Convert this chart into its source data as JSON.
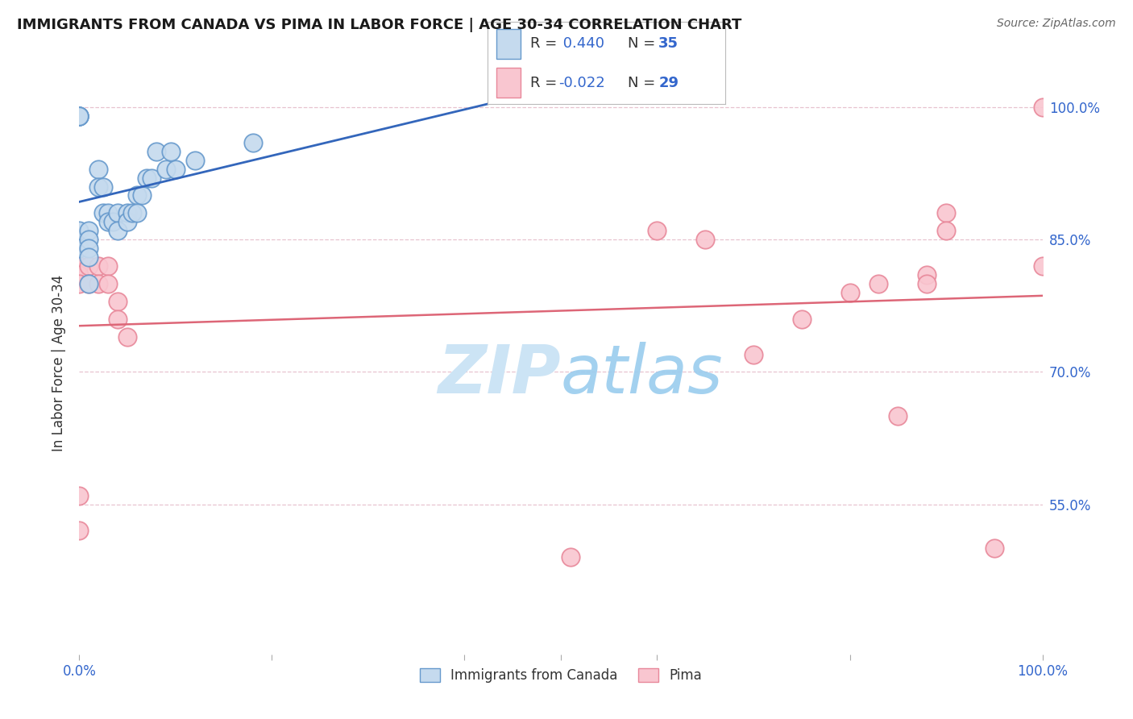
{
  "title": "IMMIGRANTS FROM CANADA VS PIMA IN LABOR FORCE | AGE 30-34 CORRELATION CHART",
  "source": "Source: ZipAtlas.com",
  "ylabel": "In Labor Force | Age 30-34",
  "ytick_values": [
    1.0,
    0.85,
    0.7,
    0.55
  ],
  "xlim": [
    0.0,
    1.0
  ],
  "ylim": [
    0.38,
    1.04
  ],
  "r_canada": 0.44,
  "n_canada": 35,
  "r_pima": -0.022,
  "n_pima": 29,
  "canada_fill": "#c5daee",
  "pima_fill": "#f9c6d0",
  "canada_edge": "#6699cc",
  "pima_edge": "#e8889a",
  "canada_line": "#3366bb",
  "pima_line": "#dd6677",
  "blue_text": "#3366cc",
  "watermark_color": "#cce4f5",
  "canada_x": [
    0.0,
    0.0,
    0.0,
    0.0,
    0.0,
    0.0,
    0.0,
    0.01,
    0.01,
    0.01,
    0.01,
    0.01,
    0.02,
    0.02,
    0.025,
    0.025,
    0.03,
    0.03,
    0.035,
    0.04,
    0.04,
    0.05,
    0.05,
    0.055,
    0.06,
    0.06,
    0.065,
    0.07,
    0.075,
    0.08,
    0.09,
    0.095,
    0.1,
    0.12,
    0.18
  ],
  "canada_y": [
    0.99,
    0.99,
    0.99,
    0.99,
    0.99,
    0.86,
    0.84,
    0.86,
    0.85,
    0.84,
    0.83,
    0.8,
    0.93,
    0.91,
    0.91,
    0.88,
    0.88,
    0.87,
    0.87,
    0.88,
    0.86,
    0.88,
    0.87,
    0.88,
    0.9,
    0.88,
    0.9,
    0.92,
    0.92,
    0.95,
    0.93,
    0.95,
    0.93,
    0.94,
    0.96
  ],
  "pima_x": [
    0.0,
    0.0,
    0.0,
    0.0,
    0.0,
    0.01,
    0.01,
    0.02,
    0.02,
    0.03,
    0.03,
    0.04,
    0.04,
    0.05,
    0.51,
    0.6,
    0.65,
    0.7,
    0.75,
    0.8,
    0.83,
    0.85,
    0.88,
    0.88,
    0.9,
    0.9,
    0.95,
    1.0,
    1.0
  ],
  "pima_y": [
    0.82,
    0.81,
    0.8,
    0.56,
    0.52,
    0.82,
    0.8,
    0.82,
    0.8,
    0.82,
    0.8,
    0.78,
    0.76,
    0.74,
    0.49,
    0.86,
    0.85,
    0.72,
    0.76,
    0.79,
    0.8,
    0.65,
    0.81,
    0.8,
    0.88,
    0.86,
    0.5,
    0.82,
    1.0
  ]
}
